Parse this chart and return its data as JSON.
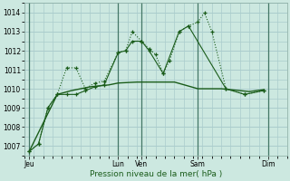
{
  "background_color": "#cce8e0",
  "grid_color": "#aacccc",
  "line_color": "#1a5c1a",
  "xlabel": "Pression niveau de la mer( hPa )",
  "ylim": [
    1006.5,
    1014.5
  ],
  "yticks": [
    1007,
    1008,
    1009,
    1010,
    1011,
    1012,
    1013,
    1014
  ],
  "xlim": [
    0,
    28
  ],
  "x_tick_labels": [
    "Jeu",
    "Lun",
    "Ven",
    "Sam",
    "Dim"
  ],
  "x_tick_positions": [
    0.5,
    10,
    12.5,
    18.5,
    26
  ],
  "x_vlines": [
    0.5,
    10,
    12.5,
    18.5,
    26
  ],
  "series_main": {
    "x": [
      0.5,
      1.5,
      2.5,
      3.5,
      4.5,
      5.5,
      6.5,
      7.5,
      8.5,
      10.0,
      10.8,
      11.5,
      12.5,
      13.3,
      14.0,
      14.8,
      15.5,
      16.5,
      17.5,
      18.5,
      19.2,
      20.0,
      21.5,
      23.5,
      25.5
    ],
    "y": [
      1006.7,
      1007.1,
      1009.0,
      1009.7,
      1011.1,
      1011.1,
      1010.0,
      1010.3,
      1010.4,
      1011.9,
      1012.0,
      1013.0,
      1012.5,
      1012.1,
      1011.8,
      1010.8,
      1011.5,
      1013.0,
      1013.3,
      1013.5,
      1014.0,
      1013.0,
      1010.0,
      1009.7,
      1009.9
    ]
  },
  "series_flat": {
    "x": [
      0.5,
      3.5,
      5.0,
      7.0,
      9.0,
      10.0,
      12.0,
      14.0,
      16.0,
      18.5,
      21.0,
      24.0,
      25.5
    ],
    "y": [
      1006.7,
      1009.7,
      1009.9,
      1010.1,
      1010.2,
      1010.3,
      1010.35,
      1010.35,
      1010.35,
      1010.0,
      1010.0,
      1009.85,
      1009.95
    ]
  },
  "series_lower": {
    "x": [
      0.5,
      1.5,
      2.5,
      3.5,
      4.5,
      5.5,
      6.5,
      7.5,
      8.5,
      10.0,
      10.8,
      11.5,
      12.5,
      13.3,
      14.8,
      16.5,
      17.5,
      21.5,
      23.5,
      25.5
    ],
    "y": [
      1006.7,
      1007.1,
      1009.0,
      1009.7,
      1009.7,
      1009.7,
      1009.9,
      1010.1,
      1010.2,
      1011.9,
      1012.0,
      1012.5,
      1012.5,
      1012.0,
      1010.8,
      1013.0,
      1013.3,
      1010.0,
      1009.7,
      1009.9
    ]
  }
}
